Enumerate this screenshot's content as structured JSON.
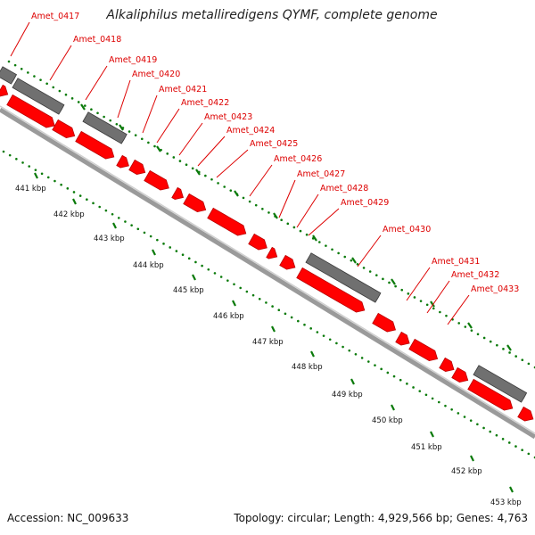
{
  "header": {
    "title": "Alkaliphilus metalliredigens QYMF, complete genome"
  },
  "footer": {
    "accession": "Accession: NC_009633",
    "topology": "Topology: circular; Length: 4,929,566 bp; Genes: 4,763"
  },
  "colors": {
    "gene": "#ff0000",
    "gene_dark": "#b80000",
    "rna": "#707070",
    "rna_dark": "#3a3a3a",
    "tick": "#0a7a0a",
    "label": "#dd0000",
    "backbone": "#9a9a9a"
  },
  "gene_labels": [
    "Amet_0417",
    "Amet_0418",
    "Amet_0419",
    "Amet_0420",
    "Amet_0421",
    "Amet_0422",
    "Amet_0423",
    "Amet_0424",
    "Amet_0425",
    "Amet_0426",
    "Amet_0427",
    "Amet_0428",
    "Amet_0429",
    "Amet_0430",
    "Amet_0431",
    "Amet_0432",
    "Amet_0433"
  ],
  "scale_labels": [
    "441 kbp",
    "442 kbp",
    "443 kbp",
    "444 kbp",
    "445 kbp",
    "446 kbp",
    "447 kbp",
    "448 kbp",
    "449 kbp",
    "450 kbp",
    "451 kbp",
    "452 kbp",
    "453 kbp"
  ]
}
